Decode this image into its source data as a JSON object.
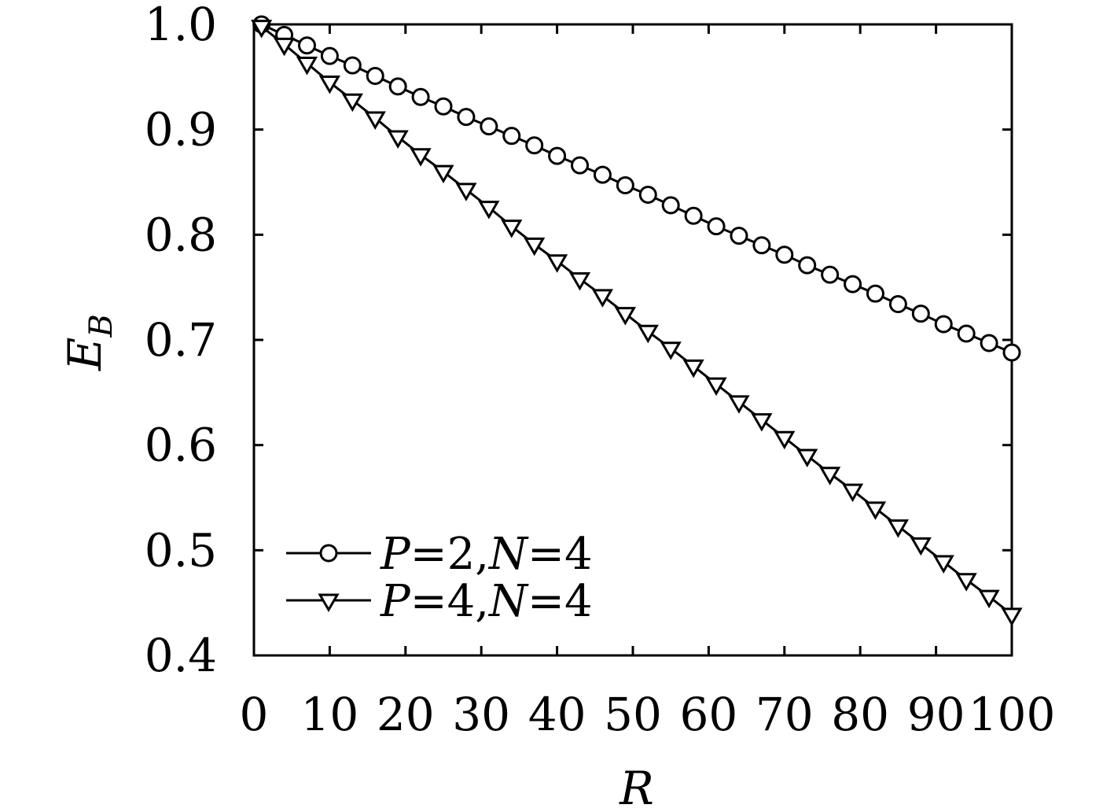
{
  "chart_data": {
    "type": "line",
    "title": "",
    "xlabel": "R",
    "ylabel_main": "E",
    "ylabel_sub": "B",
    "xlim": [
      0,
      100
    ],
    "ylim": [
      0.4,
      1.0
    ],
    "xticks": [
      "0",
      "10",
      "20",
      "30",
      "40",
      "50",
      "60",
      "70",
      "80",
      "90",
      "100"
    ],
    "yticks": [
      "0.4",
      "0.5",
      "0.6",
      "0.7",
      "0.8",
      "0.9",
      "1.0"
    ],
    "grid": false,
    "legend_position": "bottom-left",
    "series": [
      {
        "name": "P=2,N=4",
        "legend": {
          "v1": "P",
          "eq1": "=2,",
          "v2": "N",
          "eq2": "=4"
        },
        "marker": "circle",
        "color": "#000000",
        "x": [
          1,
          4,
          7,
          10,
          13,
          16,
          19,
          22,
          25,
          28,
          31,
          34,
          37,
          40,
          43,
          46,
          49,
          52,
          55,
          58,
          61,
          64,
          67,
          70,
          73,
          76,
          79,
          82,
          85,
          88,
          91,
          94,
          97,
          100
        ],
        "y": [
          1.0,
          0.99,
          0.98,
          0.97,
          0.961,
          0.951,
          0.941,
          0.931,
          0.922,
          0.912,
          0.903,
          0.894,
          0.885,
          0.875,
          0.866,
          0.857,
          0.847,
          0.838,
          0.828,
          0.818,
          0.808,
          0.799,
          0.79,
          0.781,
          0.771,
          0.762,
          0.753,
          0.744,
          0.734,
          0.725,
          0.715,
          0.706,
          0.697,
          0.688
        ]
      },
      {
        "name": "P=4,N=4",
        "legend": {
          "v1": "P",
          "eq1": "=4,",
          "v2": "N",
          "eq2": "=4"
        },
        "marker": "triangle-down",
        "color": "#000000",
        "x": [
          1,
          4,
          7,
          10,
          13,
          16,
          19,
          22,
          25,
          28,
          31,
          34,
          37,
          40,
          43,
          46,
          49,
          52,
          55,
          58,
          61,
          64,
          67,
          70,
          73,
          76,
          79,
          82,
          85,
          88,
          91,
          94,
          97,
          100
        ],
        "y": [
          0.998,
          0.981,
          0.963,
          0.945,
          0.928,
          0.911,
          0.893,
          0.876,
          0.86,
          0.843,
          0.826,
          0.808,
          0.791,
          0.775,
          0.758,
          0.742,
          0.725,
          0.708,
          0.692,
          0.675,
          0.658,
          0.641,
          0.624,
          0.607,
          0.59,
          0.573,
          0.557,
          0.54,
          0.523,
          0.506,
          0.489,
          0.472,
          0.456,
          0.439
        ]
      }
    ]
  }
}
